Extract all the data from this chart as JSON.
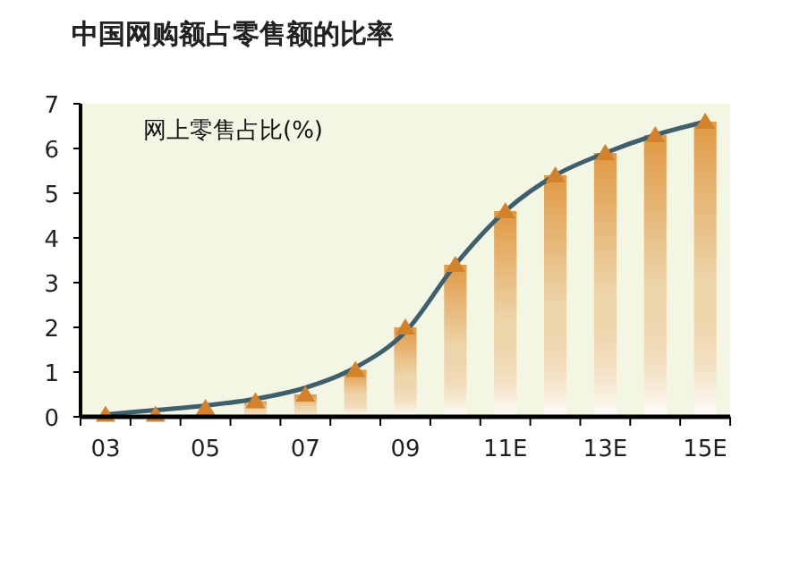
{
  "chart_data": {
    "type": "line",
    "title": "中国网购额占零售额的比率",
    "annotations": [
      "网上零售占比(%)"
    ],
    "categories": [
      "03",
      null,
      "05",
      null,
      "07",
      null,
      "09",
      null,
      "11E",
      null,
      "13E",
      null,
      "15E"
    ],
    "ylim": [
      0,
      7
    ],
    "yticks": [
      0,
      1,
      2,
      3,
      4,
      5,
      6,
      7
    ],
    "series": [
      {
        "type": "bar",
        "color": "#e09a45",
        "values": [
          null,
          null,
          null,
          0.35,
          0.5,
          1.05,
          2.0,
          3.4,
          4.6,
          5.4,
          5.9,
          6.3,
          6.6
        ]
      },
      {
        "color": "#3d5f6e",
        "marker": "none",
        "values": [
          0.05,
          0.15,
          0.25,
          0.4,
          0.65,
          1.1,
          1.9,
          3.4,
          4.6,
          5.4,
          5.9,
          6.3,
          6.6
        ]
      },
      {
        "type": "scatter",
        "color": "#d4822a",
        "marker": "triangle",
        "values": [
          0.05,
          0.05,
          0.2,
          0.35,
          0.5,
          1.05,
          2.0,
          3.4,
          4.6,
          5.4,
          5.9,
          6.3,
          6.6
        ]
      }
    ]
  }
}
